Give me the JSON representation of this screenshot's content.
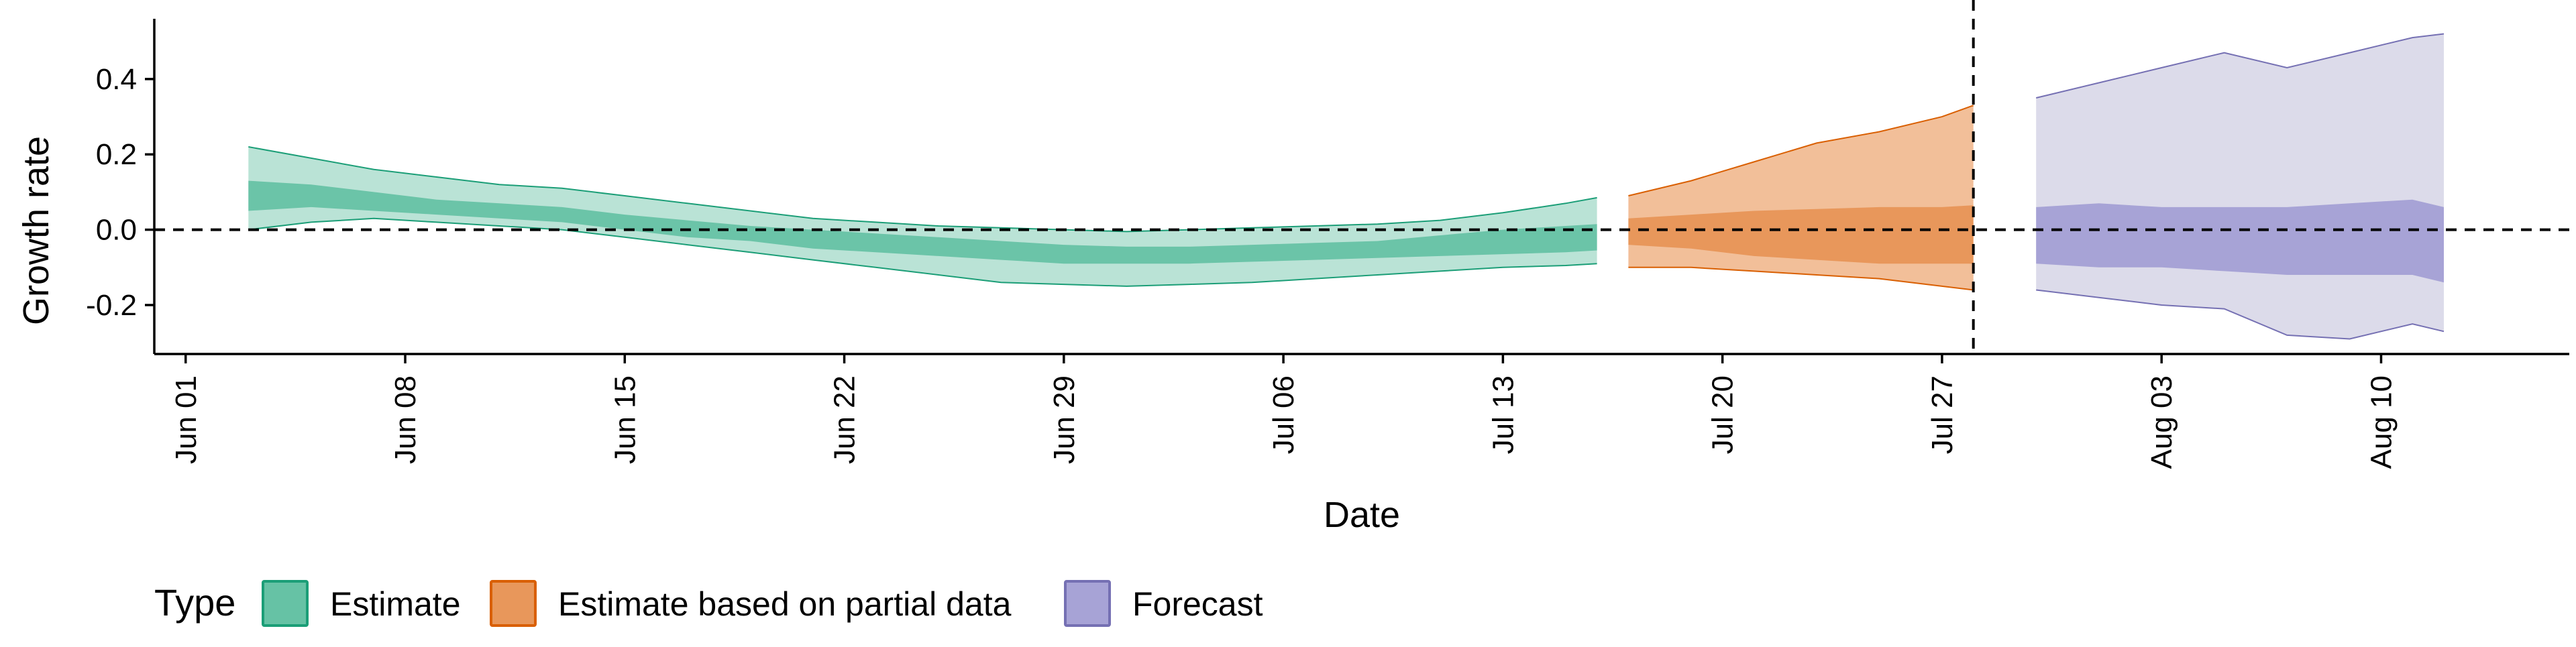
{
  "chart_data": {
    "type": "area",
    "xlabel": "Date",
    "ylabel": "Growth rate",
    "ylim": [
      -0.33,
      0.56
    ],
    "xlim": [
      "2020-05-31",
      "2020-08-16"
    ],
    "x_ticks": [
      "Jun 01",
      "Jun 08",
      "Jun 15",
      "Jun 22",
      "Jun 29",
      "Jul 06",
      "Jul 13",
      "Jul 20",
      "Jul 27",
      "Aug 03",
      "Aug 10"
    ],
    "x_tick_dates": [
      "2020-06-01",
      "2020-06-08",
      "2020-06-15",
      "2020-06-22",
      "2020-06-29",
      "2020-07-06",
      "2020-07-13",
      "2020-07-20",
      "2020-07-27",
      "2020-08-03",
      "2020-08-10"
    ],
    "y_ticks": [
      -0.2,
      0.0,
      0.2,
      0.4
    ],
    "y_tick_labels": [
      "-0.2",
      "0.0",
      "0.2",
      "0.4"
    ],
    "reference_lines": {
      "horizontal_y": 0.0,
      "vertical_date": "2020-07-28",
      "style": "dashed"
    },
    "grid": false,
    "legend": {
      "title": "Type",
      "placement": "bottom-left",
      "entries": [
        "Estimate",
        "Estimate based on partial data",
        "Forecast"
      ]
    },
    "series": [
      {
        "name": "Estimate",
        "fill": "#66c2a5",
        "inner_fill": "#66c2a5",
        "outer_fill": "#66c2a5",
        "stroke": "#1b9e77",
        "x": [
          "2020-06-03",
          "2020-06-05",
          "2020-06-07",
          "2020-06-09",
          "2020-06-11",
          "2020-06-13",
          "2020-06-15",
          "2020-06-17",
          "2020-06-19",
          "2020-06-21",
          "2020-06-23",
          "2020-06-25",
          "2020-06-27",
          "2020-06-29",
          "2020-07-01",
          "2020-07-03",
          "2020-07-05",
          "2020-07-07",
          "2020-07-09",
          "2020-07-11",
          "2020-07-13",
          "2020-07-15",
          "2020-07-16"
        ],
        "outer_lo": [
          0.0,
          0.02,
          0.03,
          0.02,
          0.01,
          0.0,
          -0.02,
          -0.04,
          -0.06,
          -0.08,
          -0.1,
          -0.12,
          -0.14,
          -0.145,
          -0.15,
          -0.145,
          -0.14,
          -0.13,
          -0.12,
          -0.11,
          -0.1,
          -0.095,
          -0.09
        ],
        "inner_lo": [
          0.05,
          0.06,
          0.05,
          0.04,
          0.03,
          0.02,
          0.0,
          -0.02,
          -0.03,
          -0.05,
          -0.06,
          -0.07,
          -0.08,
          -0.09,
          -0.09,
          -0.09,
          -0.085,
          -0.08,
          -0.075,
          -0.07,
          -0.065,
          -0.06,
          -0.055
        ],
        "inner_hi": [
          0.13,
          0.12,
          0.1,
          0.08,
          0.07,
          0.06,
          0.04,
          0.025,
          0.01,
          0.0,
          -0.01,
          -0.02,
          -0.03,
          -0.04,
          -0.045,
          -0.045,
          -0.04,
          -0.035,
          -0.03,
          -0.015,
          0.0,
          0.01,
          0.015
        ],
        "outer_hi": [
          0.22,
          0.19,
          0.16,
          0.14,
          0.12,
          0.11,
          0.09,
          0.07,
          0.05,
          0.03,
          0.02,
          0.01,
          0.005,
          0.0,
          -0.005,
          0.0,
          0.005,
          0.01,
          0.015,
          0.025,
          0.045,
          0.07,
          0.085
        ]
      },
      {
        "name": "Estimate based on partial data",
        "fill": "#fc8d62",
        "inner_fill": "#e8975b",
        "outer_fill": "#f2bf99",
        "stroke": "#d95f02",
        "x": [
          "2020-07-17",
          "2020-07-19",
          "2020-07-21",
          "2020-07-23",
          "2020-07-25",
          "2020-07-27",
          "2020-07-28"
        ],
        "outer_lo": [
          -0.1,
          -0.1,
          -0.11,
          -0.12,
          -0.13,
          -0.15,
          -0.16
        ],
        "inner_lo": [
          -0.04,
          -0.05,
          -0.07,
          -0.08,
          -0.09,
          -0.09,
          -0.09
        ],
        "inner_hi": [
          0.03,
          0.04,
          0.05,
          0.055,
          0.06,
          0.06,
          0.065
        ],
        "outer_hi": [
          0.09,
          0.13,
          0.18,
          0.23,
          0.26,
          0.3,
          0.33
        ]
      },
      {
        "name": "Forecast",
        "fill": "#8da0cb",
        "inner_fill": "#a7a3d6",
        "outer_fill": "#dcdbea",
        "stroke": "#7570b3",
        "x": [
          "2020-07-30",
          "2020-08-01",
          "2020-08-03",
          "2020-08-05",
          "2020-08-07",
          "2020-08-09",
          "2020-08-11",
          "2020-08-12"
        ],
        "outer_lo": [
          -0.16,
          -0.18,
          -0.2,
          -0.21,
          -0.28,
          -0.29,
          -0.25,
          -0.27
        ],
        "inner_lo": [
          -0.09,
          -0.1,
          -0.1,
          -0.11,
          -0.12,
          -0.12,
          -0.12,
          -0.14
        ],
        "inner_hi": [
          0.06,
          0.07,
          0.06,
          0.06,
          0.06,
          0.07,
          0.08,
          0.06
        ],
        "outer_hi": [
          0.35,
          0.39,
          0.43,
          0.47,
          0.43,
          0.47,
          0.51,
          0.52
        ]
      }
    ]
  }
}
